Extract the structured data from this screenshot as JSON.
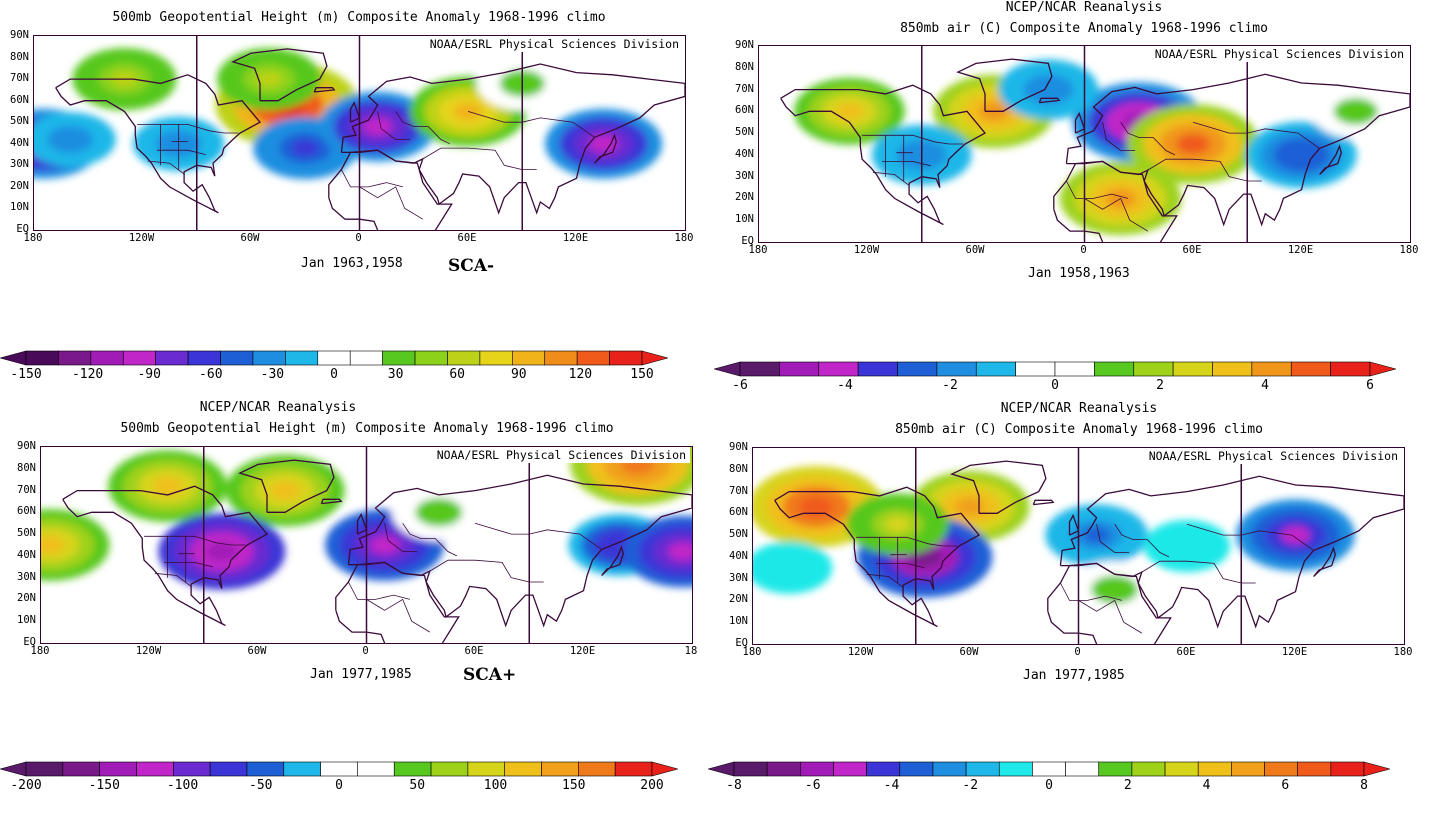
{
  "panels": [
    {
      "id": "p1",
      "title_lines": [
        "500mb Geopotential Height (m) Composite Anomaly 1968-1996 climo"
      ],
      "credit": "NOAA/ESRL Physical Sciences Division",
      "period": "Jan 1963,1958",
      "tag": "SCA-",
      "lat_labels": [
        "90N",
        "80N",
        "70N",
        "60N",
        "50N",
        "40N",
        "30N",
        "20N",
        "10N",
        "EQ"
      ],
      "lon_labels": [
        "180",
        "120W",
        "60W",
        "0",
        "60E",
        "120E",
        "180"
      ],
      "anomalies": [
        {
          "lon": -175,
          "lat": 40,
          "level": -90
        },
        {
          "lon": -160,
          "lat": 42,
          "level": -30
        },
        {
          "lon": -40,
          "lat": 58,
          "level": 150
        },
        {
          "lon": -50,
          "lat": 70,
          "level": 60
        },
        {
          "lon": -130,
          "lat": 70,
          "level": 60
        },
        {
          "lon": -30,
          "lat": 38,
          "level": -60
        },
        {
          "lon": 10,
          "lat": 48,
          "level": -90
        },
        {
          "lon": 60,
          "lat": 55,
          "level": 90
        },
        {
          "lon": 90,
          "lat": 68,
          "level": 30
        },
        {
          "lon": 135,
          "lat": 40,
          "level": -90
        },
        {
          "lon": -100,
          "lat": 40,
          "level": -30
        }
      ]
    },
    {
      "id": "p2",
      "title_lines": [
        "NCEP/NCAR Reanalysis",
        "850mb air (C) Composite Anomaly 1968-1996 climo"
      ],
      "credit": "NOAA/ESRL Physical Sciences Division",
      "period": "Jan 1958,1963",
      "tag": "",
      "lat_labels": [
        "90N",
        "80N",
        "70N",
        "60N",
        "50N",
        "40N",
        "30N",
        "20N",
        "10N",
        "EQ"
      ],
      "lon_labels": [
        "180",
        "120W",
        "60W",
        "0",
        "60E",
        "120E",
        "180"
      ],
      "anomalies": [
        {
          "lon": -130,
          "lat": 60,
          "level": 3
        },
        {
          "lon": -50,
          "lat": 60,
          "level": 4
        },
        {
          "lon": -90,
          "lat": 40,
          "level": -2
        },
        {
          "lon": 30,
          "lat": 55,
          "level": -5
        },
        {
          "lon": 60,
          "lat": 45,
          "level": 5
        },
        {
          "lon": 20,
          "lat": 20,
          "level": 4
        },
        {
          "lon": 120,
          "lat": 40,
          "level": -3
        },
        {
          "lon": 150,
          "lat": 60,
          "level": 1
        },
        {
          "lon": -20,
          "lat": 70,
          "level": -2
        }
      ]
    },
    {
      "id": "p3",
      "title_lines": [
        "NCEP/NCAR Reanalysis",
        "500mb Geopotential Height (m) Composite Anomaly 1968-1996 climo"
      ],
      "credit": "NOAA/ESRL Physical Sciences Division",
      "period": "Jan 1977,1985",
      "tag": "SCA+",
      "lat_labels": [
        "90N",
        "80N",
        "70N",
        "60N",
        "50N",
        "40N",
        "30N",
        "20N",
        "10N",
        "EQ"
      ],
      "lon_labels": [
        "180",
        "120W",
        "60W",
        "0",
        "60E",
        "120E",
        "18"
      ],
      "anomalies": [
        {
          "lon": -175,
          "lat": 45,
          "level": 125
        },
        {
          "lon": -110,
          "lat": 72,
          "level": 125
        },
        {
          "lon": -45,
          "lat": 70,
          "level": 125
        },
        {
          "lon": -80,
          "lat": 42,
          "level": -150
        },
        {
          "lon": 10,
          "lat": 45,
          "level": -125
        },
        {
          "lon": 150,
          "lat": 82,
          "level": 175
        },
        {
          "lon": 140,
          "lat": 45,
          "level": -75
        },
        {
          "lon": 175,
          "lat": 42,
          "level": -125
        },
        {
          "lon": 40,
          "lat": 60,
          "level": 50
        }
      ]
    },
    {
      "id": "p4",
      "title_lines": [
        "NCEP/NCAR Reanalysis",
        "850mb air (C) Composite Anomaly 1968-1996 climo"
      ],
      "credit": "NOAA/ESRL Physical Sciences Division",
      "period": "Jan 1977,1985",
      "tag": "",
      "lat_labels": [
        "90N",
        "80N",
        "70N",
        "60N",
        "50N",
        "40N",
        "30N",
        "20N",
        "10N",
        "EQ"
      ],
      "lon_labels": [
        "180",
        "120W",
        "60W",
        "0",
        "60E",
        "120E",
        "180"
      ],
      "anomalies": [
        {
          "lon": -145,
          "lat": 63,
          "level": 7
        },
        {
          "lon": -60,
          "lat": 63,
          "level": 5
        },
        {
          "lon": -85,
          "lat": 40,
          "level": -7
        },
        {
          "lon": -100,
          "lat": 55,
          "level": 3
        },
        {
          "lon": 10,
          "lat": 50,
          "level": -3
        },
        {
          "lon": 20,
          "lat": 25,
          "level": 2
        },
        {
          "lon": 120,
          "lat": 50,
          "level": -5
        },
        {
          "lon": 60,
          "lat": 45,
          "level": -1
        },
        {
          "lon": -160,
          "lat": 35,
          "level": -1
        }
      ]
    }
  ],
  "colorbars": [
    {
      "id": "cb1",
      "labels": [
        "-150",
        "-120",
        "-90",
        "-60",
        "-30",
        "0",
        "30",
        "60",
        "90",
        "120",
        "150"
      ],
      "colors": [
        "#4a0a5a",
        "#7a1a8a",
        "#a11bb7",
        "#c026c8",
        "#6a2bd0",
        "#3b34d6",
        "#1f5fd6",
        "#1f8ee0",
        "#1fb7e8",
        "#ffffff",
        "#ffffff",
        "#56c81f",
        "#8cd21a",
        "#bcd219",
        "#e6d41a",
        "#f0b41a",
        "#f08c1a",
        "#f05a1a",
        "#e8221a"
      ]
    },
    {
      "id": "cb2",
      "labels": [
        "-6",
        "-4",
        "-2",
        "0",
        "2",
        "4",
        "6"
      ],
      "colors": [
        "#5a1a6a",
        "#a11bb7",
        "#c026c8",
        "#3b34d6",
        "#1f5fd6",
        "#1f8ee0",
        "#1fb7e8",
        "#ffffff",
        "#ffffff",
        "#56c81f",
        "#9dd11a",
        "#d6d41a",
        "#f0c01a",
        "#f0961a",
        "#f05a1a",
        "#e8221a"
      ]
    },
    {
      "id": "cb3",
      "labels": [
        "-200",
        "-150",
        "-100",
        "-50",
        "0",
        "50",
        "100",
        "150",
        "200"
      ],
      "colors": [
        "#5a1a6a",
        "#7a1a8a",
        "#a11bb7",
        "#c026c8",
        "#6a2bd0",
        "#3b34d6",
        "#1f5fd6",
        "#1fb7e8",
        "#ffffff",
        "#ffffff",
        "#56c81f",
        "#9dd11a",
        "#d6d41a",
        "#f0c01a",
        "#f0a01a",
        "#f07a1a",
        "#e8221a"
      ]
    },
    {
      "id": "cb4",
      "labels": [
        "-8",
        "-6",
        "-4",
        "-2",
        "0",
        "2",
        "4",
        "6",
        "8"
      ],
      "colors": [
        "#5a1a6a",
        "#7a1a8a",
        "#a11bb7",
        "#c026c8",
        "#3b34d6",
        "#1f5fd6",
        "#1f8ee0",
        "#1fb7e8",
        "#1fe8e8",
        "#ffffff",
        "#ffffff",
        "#56c81f",
        "#9dd11a",
        "#d6d41a",
        "#f0c01a",
        "#f0a01a",
        "#f07a1a",
        "#f05a1a",
        "#e8221a"
      ]
    }
  ]
}
